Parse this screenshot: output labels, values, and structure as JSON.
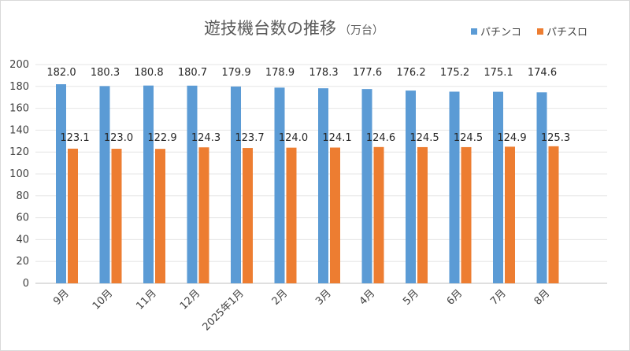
{
  "chart_data": {
    "type": "bar",
    "title": "遊技機台数の推移",
    "title_unit": "（万台）",
    "categories": [
      "9月",
      "10月",
      "11月",
      "12月",
      "2025年1月",
      "2月",
      "3月",
      "4月",
      "5月",
      "6月",
      "7月",
      "8月"
    ],
    "series": [
      {
        "name": "パチンコ",
        "color": "#5b9bd5",
        "values": [
          182.0,
          180.3,
          180.8,
          180.7,
          179.9,
          178.9,
          178.3,
          177.6,
          176.2,
          175.2,
          175.1,
          174.6
        ],
        "labels": [
          "182.0",
          "180.3",
          "180.8",
          "180.7",
          "179.9",
          "178.9",
          "178.3",
          "177.6",
          "176.2",
          "175.2",
          "175.1",
          "174.6"
        ]
      },
      {
        "name": "パチスロ",
        "color": "#ed7d31",
        "values": [
          123.1,
          123.0,
          122.9,
          124.3,
          123.7,
          124.0,
          124.1,
          124.6,
          124.5,
          124.5,
          124.9,
          125.3
        ],
        "labels": [
          "123.1",
          "123.0",
          "122.9",
          "124.3",
          "123.7",
          "124.0",
          "124.1",
          "124.6",
          "124.5",
          "124.5",
          "124.9",
          "125.3"
        ]
      }
    ],
    "ylim": [
      0,
      200
    ],
    "yticks": [
      "0",
      "20",
      "40",
      "60",
      "80",
      "100",
      "120",
      "140",
      "160",
      "180",
      "200"
    ],
    "grid": true,
    "legend": "top-right"
  }
}
